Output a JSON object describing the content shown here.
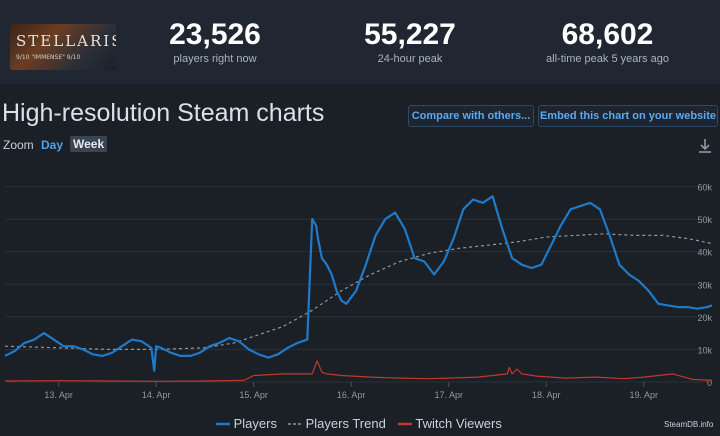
{
  "game": {
    "name": "STELLARIS",
    "tagline": "9/10  \"IMMENSE\"  9/10"
  },
  "stats": [
    {
      "value": "23,526",
      "label": "players right now"
    },
    {
      "value": "55,227",
      "label": "24-hour peak"
    },
    {
      "value": "68,602",
      "label": "all-time peak 5 years ago"
    }
  ],
  "page_title": "High-resolution Steam charts",
  "buttons": {
    "compare": "Compare with others...",
    "embed": "Embed this chart on your website"
  },
  "zoom": {
    "label": "Zoom",
    "day": "Day",
    "week": "Week"
  },
  "watermark": "SteamDB.info",
  "chart_data": {
    "type": "line",
    "title": "High-resolution Steam charts",
    "x_ticks": [
      "13. Apr",
      "14. Apr",
      "15. Apr",
      "16. Apr",
      "17. Apr",
      "18. Apr",
      "19. Apr"
    ],
    "y_ticks": [
      "0",
      "10k",
      "20k",
      "30k",
      "40k",
      "50k",
      "60k"
    ],
    "ylim": [
      0,
      62000
    ],
    "xlim": [
      12.45,
      19.7
    ],
    "legend": [
      "Players",
      "Players Trend",
      "Twitch Viewers"
    ],
    "colors": {
      "players": "#1f7ac9",
      "trend": "#8f99a3",
      "twitch": "#c0392b",
      "grid": "#2a303a"
    },
    "series": [
      {
        "name": "Players",
        "x": [
          12.45,
          12.55,
          12.65,
          12.75,
          12.85,
          12.95,
          13.05,
          13.15,
          13.25,
          13.35,
          13.45,
          13.55,
          13.65,
          13.75,
          13.85,
          13.9,
          13.95,
          13.98,
          14.0,
          14.05,
          14.15,
          14.25,
          14.35,
          14.45,
          14.55,
          14.65,
          14.75,
          14.85,
          14.95,
          15.05,
          15.15,
          15.25,
          15.35,
          15.45,
          15.55,
          15.6,
          15.64,
          15.66,
          15.7,
          15.75,
          15.8,
          15.85,
          15.9,
          15.95,
          16.05,
          16.15,
          16.25,
          16.35,
          16.45,
          16.55,
          16.65,
          16.75,
          16.8,
          16.85,
          16.9,
          16.95,
          17.05,
          17.15,
          17.25,
          17.35,
          17.45,
          17.55,
          17.65,
          17.75,
          17.85,
          17.95,
          18.05,
          18.15,
          18.25,
          18.35,
          18.45,
          18.55,
          18.65,
          18.75,
          18.85,
          18.95,
          19.05,
          19.15,
          19.25,
          19.35,
          19.45,
          19.55,
          19.65,
          19.7
        ],
        "values": [
          8000,
          9500,
          12000,
          13000,
          15000,
          13000,
          11000,
          11000,
          10000,
          8500,
          8000,
          9000,
          11000,
          13000,
          12500,
          11500,
          10500,
          3500,
          11000,
          10500,
          9000,
          8000,
          8000,
          9000,
          11000,
          12000,
          13500,
          12500,
          10000,
          8500,
          7500,
          8500,
          10500,
          12000,
          13000,
          50000,
          48000,
          44000,
          38000,
          36000,
          33000,
          28000,
          25000,
          24000,
          28000,
          36000,
          45000,
          50000,
          52000,
          47000,
          38000,
          37000,
          35000,
          33000,
          35000,
          37000,
          44000,
          53000,
          56000,
          55000,
          57000,
          47000,
          38000,
          36000,
          35000,
          36000,
          42000,
          48000,
          53000,
          54000,
          55000,
          53000,
          45000,
          36000,
          33000,
          31000,
          28000,
          24000,
          23500,
          23000,
          23000,
          22500,
          23000,
          23526
        ]
      },
      {
        "name": "Players Trend",
        "x": [
          12.45,
          13.0,
          13.5,
          14.0,
          14.5,
          14.8,
          15.0,
          15.3,
          15.6,
          15.9,
          16.2,
          16.5,
          16.8,
          17.1,
          17.4,
          17.7,
          18.0,
          18.3,
          18.6,
          18.9,
          19.2,
          19.45,
          19.7
        ],
        "values": [
          11000,
          10500,
          10000,
          10000,
          10500,
          12000,
          14000,
          17000,
          22000,
          28000,
          33000,
          37000,
          39500,
          41000,
          42000,
          43000,
          44500,
          45000,
          45500,
          45000,
          45000,
          44000,
          42500
        ]
      },
      {
        "name": "Twitch Viewers",
        "x": [
          12.45,
          13.0,
          13.5,
          14.0,
          14.5,
          14.9,
          15.0,
          15.3,
          15.6,
          15.65,
          15.7,
          15.75,
          15.9,
          16.2,
          16.5,
          16.8,
          17.0,
          17.3,
          17.6,
          17.62,
          17.65,
          17.7,
          17.75,
          17.9,
          18.2,
          18.5,
          18.8,
          19.0,
          19.3,
          19.5,
          19.7
        ],
        "values": [
          300,
          400,
          300,
          200,
          300,
          500,
          2000,
          2500,
          2500,
          6500,
          3000,
          2500,
          2000,
          1500,
          1200,
          1000,
          1200,
          1500,
          2500,
          4500,
          2500,
          4000,
          2500,
          1800,
          1200,
          1500,
          1000,
          1500,
          2500,
          800,
          500
        ]
      }
    ]
  }
}
